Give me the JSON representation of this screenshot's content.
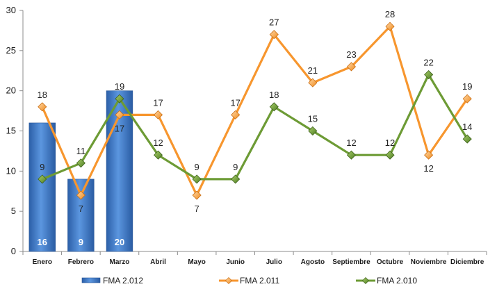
{
  "chart_data": {
    "type": "bar",
    "categories": [
      "Enero",
      "Febrero",
      "Marzo",
      "Abril",
      "Mayo",
      "Junio",
      "Julio",
      "Agosto",
      "Septiembre",
      "Octubre",
      "Noviembre",
      "Diciembre"
    ],
    "ylim": [
      0,
      30
    ],
    "yticks": [
      0,
      5,
      10,
      15,
      20,
      25,
      30
    ],
    "grid": false,
    "legend_position": "bottom",
    "series": [
      {
        "name": "FMA 2.012",
        "type": "bar",
        "color": "#3b78c7",
        "values": [
          16,
          9,
          20,
          null,
          null,
          null,
          null,
          null,
          null,
          null,
          null,
          null
        ],
        "labels": [
          "16",
          "9",
          "20"
        ]
      },
      {
        "name": "FMA 2.011",
        "type": "line",
        "color": "#f7962e",
        "values": [
          18,
          7,
          17,
          17,
          7,
          17,
          27,
          21,
          23,
          28,
          12,
          19
        ]
      },
      {
        "name": "FMA 2.010",
        "type": "line",
        "color": "#6d9b35",
        "values": [
          9,
          11,
          19,
          12,
          9,
          9,
          18,
          15,
          12,
          12,
          22,
          14
        ]
      }
    ]
  }
}
